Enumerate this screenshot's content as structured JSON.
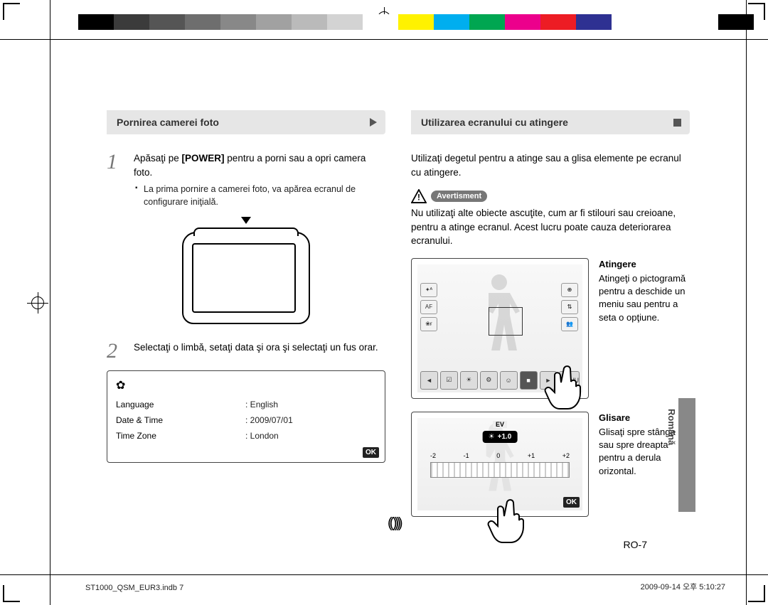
{
  "colorbar": [
    "#000000",
    "#3b3b3b",
    "#555555",
    "#6e6e6e",
    "#888888",
    "#a1a1a1",
    "#bababa",
    "#d3d3d3",
    "#ffffff",
    "#fff200",
    "#00aeef",
    "#00a651",
    "#ec008c",
    "#ed1c24",
    "#2e3192",
    "#ffffff",
    "#ffffff",
    "#ffffff",
    "#000000"
  ],
  "left": {
    "ribbon": "Pornirea camerei foto",
    "step1_a": "Apăsaţi pe ",
    "step1_power": "[POWER]",
    "step1_b": " pentru a porni sau a opri camera foto.",
    "bullet1": "La prima pornire a camerei foto, va apărea ecranul de configurare iniţială.",
    "step2": "Selectaţi o limbă, setaţi data şi ora şi selectaţi un fus orar.",
    "settings": {
      "rows": [
        {
          "k": "Language",
          "v": ": English"
        },
        {
          "k": "Date & Time",
          "v": ": 2009/07/01"
        },
        {
          "k": "Time Zone",
          "v": ": London"
        }
      ],
      "ok": "OK"
    }
  },
  "right": {
    "ribbon": "Utilizarea ecranului cu atingere",
    "intro": "Utilizaţi degetul pentru a atinge sau a glisa elemente pe ecranul cu atingere.",
    "warn_label": "Avertisment",
    "warn_text": "Nu utilizaţi alte obiecte ascuţite, cum ar fi stilouri sau creioane, pentru a atinge ecranul. Acest lucru poate cauza deteriorarea ecranului.",
    "atingere_h": "Atingere",
    "atingere": "Atingeţi o pictogramă pentru a deschide un meniu sau pentru a seta o opţiune.",
    "glisare_h": "Glisare",
    "glisare": "Glisaţi spre stânga sau spre dreapta pentru a derula orizontal.",
    "screen1": {
      "side": [
        "✦ᴬ",
        "AF",
        "❀ғ"
      ],
      "right": [
        "⊕",
        "⇅",
        "👥"
      ],
      "bottom": [
        "◄",
        "☑",
        "☀",
        "⚙",
        "☺",
        "■",
        "►",
        "MENU"
      ]
    },
    "screen2": {
      "ev_label": "EV",
      "ev": "+1.0",
      "scale": [
        "-2",
        "-1",
        "0",
        "+1",
        "+2"
      ],
      "ok": "OK"
    }
  },
  "page_num": "RO-7",
  "tab": "Română",
  "footer_l": "ST1000_QSM_EUR3.indb   7",
  "footer_r": "2009-09-14   오후 5:10:27"
}
